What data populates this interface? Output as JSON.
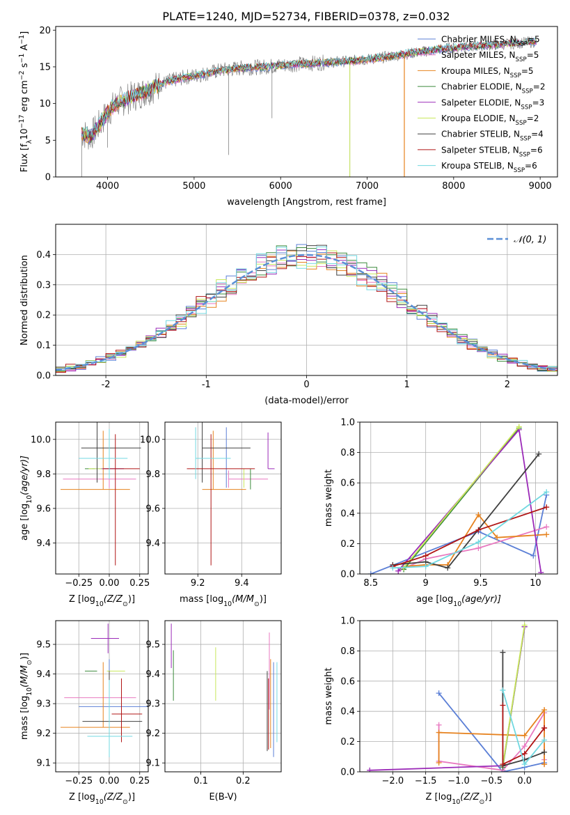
{
  "figure_title": "PLATE=1240, MJD=52734, FIBERID=0378, z=0.032",
  "colors": {
    "chabrier_miles": "#5b7fd6",
    "salpeter_miles": "#e879c0",
    "kroupa_miles": "#e6821e",
    "chabrier_elodie": "#3b8a3b",
    "salpeter_elodie": "#9b2ab8",
    "kroupa_elodie": "#c8e85a",
    "chabrier_stelib": "#404040",
    "salpeter_stelib": "#b01414",
    "kroupa_stelib": "#70d8e0",
    "data": "#808080",
    "normal_curve": "#5b8fd6",
    "grid": "#b0b0b0"
  },
  "legend_models": [
    {
      "key": "chabrier_miles",
      "label": "Chabrier MILES, N",
      "sub": "SSP",
      "value": "=5"
    },
    {
      "key": "salpeter_miles",
      "label": "Salpeter MILES, N",
      "sub": "SSP",
      "value": "=5"
    },
    {
      "key": "kroupa_miles",
      "label": "Kroupa MILES, N",
      "sub": "SSP",
      "value": "=5"
    },
    {
      "key": "chabrier_elodie",
      "label": "Chabrier ELODIE, N",
      "sub": "SSP",
      "value": "=2"
    },
    {
      "key": "salpeter_elodie",
      "label": "Salpeter ELODIE, N",
      "sub": "SSP",
      "value": "=3"
    },
    {
      "key": "kroupa_elodie",
      "label": "Kroupa ELODIE, N",
      "sub": "SSP",
      "value": "=2"
    },
    {
      "key": "chabrier_stelib",
      "label": "Chabrier STELIB, N",
      "sub": "SSP",
      "value": "=4"
    },
    {
      "key": "salpeter_stelib",
      "label": "Salpeter STELIB, N",
      "sub": "SSP",
      "value": "=6"
    },
    {
      "key": "kroupa_stelib",
      "label": "Kroupa STELIB, N",
      "sub": "SSP",
      "value": "=6"
    }
  ],
  "chart_data": [
    {
      "id": "spectrum",
      "type": "line",
      "xlabel": "wavelength [Angstrom, rest frame]",
      "ylabel_parts": [
        "Flux [f",
        "λ",
        "10",
        "−17",
        " erg cm",
        "−2",
        " s",
        "−1",
        " A",
        "−1",
        "]"
      ],
      "xlim": [
        3400,
        9200
      ],
      "ylim": [
        0,
        20.5
      ],
      "xticks": [
        4000,
        5000,
        6000,
        7000,
        8000,
        9000
      ],
      "yticks": [
        0,
        5,
        10,
        15,
        20
      ],
      "grid": false,
      "legend": "upper right",
      "continuum": {
        "x": [
          3700,
          3800,
          3900,
          4000,
          4100,
          4300,
          4500,
          4700,
          4900,
          5100,
          5300,
          5500,
          5800,
          6100,
          6400,
          6700,
          7000,
          7300,
          7600,
          7900,
          8200,
          8500,
          8800,
          9100
        ],
        "y": [
          6.0,
          5.5,
          7.0,
          8.8,
          10.0,
          11.0,
          12.0,
          13.0,
          13.6,
          14.0,
          14.5,
          14.8,
          15.0,
          15.3,
          15.5,
          15.7,
          16.0,
          16.5,
          17.0,
          17.5,
          17.8,
          18.0,
          18.3,
          18.6
        ]
      },
      "data_dips": [
        {
          "x": 3700,
          "y": 0.0
        },
        {
          "x": 4000,
          "y": 4.0
        },
        {
          "x": 5400,
          "y": 3.0
        },
        {
          "x": 5900,
          "y": 8.0
        },
        {
          "x": 6800,
          "y": 0.0
        },
        {
          "x": 7430,
          "y": 0.0
        }
      ]
    },
    {
      "id": "residual_histogram",
      "type": "histogram",
      "xlabel": "(data-model)/error",
      "ylabel": "Normed distribution",
      "xlim": [
        -2.5,
        2.5
      ],
      "ylim": [
        0,
        0.5
      ],
      "xticks": [
        -2,
        -1,
        0,
        1,
        2
      ],
      "yticks": [
        0.0,
        0.1,
        0.2,
        0.3,
        0.4
      ],
      "grid": true,
      "bin_width": 0.1,
      "legend": "upper right",
      "legend_label": "𝒩(0, 1)",
      "normal_curve": {
        "mean": 0,
        "sigma": 1
      }
    },
    {
      "id": "age_vs_Z",
      "type": "scatter",
      "xlabel_parts": [
        "Z [log",
        "10",
        "(Z/Z",
        "⊙",
        ")]"
      ],
      "ylabel_parts": [
        "age  [log",
        "10",
        "(age/yr)]"
      ],
      "xlim": [
        -0.44,
        0.32
      ],
      "ylim": [
        9.22,
        10.1
      ],
      "xticks": [
        -0.25,
        0.0,
        0.25
      ],
      "xtick_labels": [
        "−0.25",
        "0.00",
        "0.25"
      ],
      "yticks": [
        9.4,
        9.6,
        9.8,
        10.0
      ],
      "grid": true,
      "points": [
        {
          "key": "chabrier_miles",
          "x": 0.0,
          "xerr": [
            0.14,
            0.12
          ],
          "y": 9.83,
          "yerr": [
            0.11,
            0.22
          ]
        },
        {
          "key": "salpeter_miles",
          "x": 0.0,
          "xerr": [
            0.38,
            0.22
          ],
          "y": 9.77,
          "yerr": [
            0.05,
            0.05
          ]
        },
        {
          "key": "kroupa_miles",
          "x": -0.05,
          "xerr": [
            0.35,
            0.22
          ],
          "y": 9.71,
          "yerr": [
            0.0,
            0.34
          ]
        },
        {
          "key": "chabrier_elodie",
          "x": -0.17,
          "xerr": [
            0.03,
            0.05
          ],
          "y": 9.83,
          "yerr": [
            0.0,
            0.0
          ]
        },
        {
          "key": "salpeter_elodie",
          "x": -0.07,
          "xerr": [
            0.0,
            0.19
          ],
          "y": 9.83,
          "yerr": [
            0.0,
            0.0
          ]
        },
        {
          "key": "kroupa_elodie",
          "x": -0.15,
          "xerr": [
            0.02,
            0.09
          ],
          "y": 9.83,
          "yerr": [
            0.0,
            0.0
          ]
        },
        {
          "key": "chabrier_stelib",
          "x": -0.1,
          "xerr": [
            0.13,
            0.36
          ],
          "y": 9.95,
          "yerr": [
            0.2,
            0.15
          ]
        },
        {
          "key": "salpeter_stelib",
          "x": 0.05,
          "xerr": [
            0.1,
            0.2
          ],
          "y": 9.83,
          "yerr": [
            0.56,
            0.2
          ]
        },
        {
          "key": "kroupa_stelib",
          "x": 0.0,
          "xerr": [
            0.25,
            0.15
          ],
          "y": 9.89,
          "yerr": [
            0.12,
            0.17
          ]
        }
      ]
    },
    {
      "id": "age_vs_mass",
      "type": "scatter",
      "xlabel_parts": [
        "mass [log",
        "10",
        "(M/M",
        "⊙",
        ")]"
      ],
      "xlim": [
        9.05,
        9.58
      ],
      "ylim": [
        9.22,
        10.1
      ],
      "xticks": [
        9.2,
        9.4
      ],
      "yticks": [
        9.4,
        9.6,
        9.8,
        10.0
      ],
      "grid": true,
      "points": [
        {
          "key": "chabrier_miles",
          "x": 9.33,
          "xerr": [
            0.0,
            0.0
          ],
          "y": 9.83,
          "yerr": [
            0.11,
            0.24
          ]
        },
        {
          "key": "salpeter_miles",
          "x": 9.34,
          "xerr": [
            0.0,
            0.18
          ],
          "y": 9.77,
          "yerr": [
            0.05,
            0.05
          ]
        },
        {
          "key": "kroupa_miles",
          "x": 9.27,
          "xerr": [
            0.05,
            0.15
          ],
          "y": 9.71,
          "yerr": [
            0.0,
            0.34
          ]
        },
        {
          "key": "chabrier_elodie",
          "x": 9.44,
          "xerr": [
            0.0,
            0.0
          ],
          "y": 9.83,
          "yerr": [
            0.12,
            0.0
          ]
        },
        {
          "key": "salpeter_elodie",
          "x": 9.52,
          "xerr": [
            0.0,
            0.03
          ],
          "y": 9.83,
          "yerr": [
            0.0,
            0.21
          ]
        },
        {
          "key": "kroupa_elodie",
          "x": 9.41,
          "xerr": [
            0.0,
            0.0
          ],
          "y": 9.83,
          "yerr": [
            0.11,
            0.0
          ]
        },
        {
          "key": "chabrier_stelib",
          "x": 9.22,
          "xerr": [
            0.0,
            0.22
          ],
          "y": 9.95,
          "yerr": [
            0.2,
            0.15
          ]
        },
        {
          "key": "salpeter_stelib",
          "x": 9.26,
          "xerr": [
            0.11,
            0.2
          ],
          "y": 9.83,
          "yerr": [
            0.56,
            0.2
          ]
        },
        {
          "key": "kroupa_stelib",
          "x": 9.19,
          "xerr": [
            0.0,
            0.16
          ],
          "y": 9.89,
          "yerr": [
            0.12,
            0.18
          ]
        }
      ]
    },
    {
      "id": "massweight_vs_age",
      "type": "line",
      "xlabel_parts": [
        "age  [log",
        "10",
        "(age/yr)]"
      ],
      "ylabel": "mass weight",
      "xlim": [
        8.4,
        10.2
      ],
      "ylim": [
        0,
        1.0
      ],
      "xticks": [
        8.5,
        9.0,
        9.5,
        10.0
      ],
      "yticks": [
        0.0,
        0.2,
        0.4,
        0.6,
        0.8,
        1.0
      ],
      "grid": true,
      "series": [
        {
          "key": "chabrier_miles",
          "x": [
            8.5,
            9.48,
            9.98,
            10.1
          ],
          "y": [
            0.0,
            0.28,
            0.12,
            0.52
          ]
        },
        {
          "key": "salpeter_miles",
          "x": [
            8.75,
            9.0,
            9.48,
            10.1
          ],
          "y": [
            0.02,
            0.1,
            0.17,
            0.31
          ]
        },
        {
          "key": "kroupa_miles",
          "x": [
            8.8,
            9.0,
            9.2,
            9.48,
            9.65,
            10.1
          ],
          "y": [
            0.05,
            0.06,
            0.06,
            0.39,
            0.24,
            0.26
          ]
        },
        {
          "key": "chabrier_elodie",
          "x": [
            8.8,
            9.85
          ],
          "y": [
            0.03,
            0.96
          ]
        },
        {
          "key": "salpeter_elodie",
          "x": [
            8.75,
            9.85,
            10.05
          ],
          "y": [
            0.02,
            0.95,
            0.01
          ]
        },
        {
          "key": "kroupa_elodie",
          "x": [
            8.8,
            9.85
          ],
          "y": [
            0.04,
            0.97
          ]
        },
        {
          "key": "chabrier_stelib",
          "x": [
            8.7,
            9.0,
            9.2,
            10.03
          ],
          "y": [
            0.06,
            0.08,
            0.04,
            0.79
          ]
        },
        {
          "key": "salpeter_stelib",
          "x": [
            8.7,
            9.0,
            9.48,
            10.1
          ],
          "y": [
            0.05,
            0.12,
            0.29,
            0.44
          ]
        },
        {
          "key": "kroupa_stelib",
          "x": [
            8.7,
            9.0,
            9.48,
            10.1
          ],
          "y": [
            0.04,
            0.05,
            0.21,
            0.54
          ]
        }
      ]
    },
    {
      "id": "mass_vs_Z",
      "type": "scatter",
      "xlabel_parts": [
        "Z [log",
        "10",
        "(Z/Z",
        "⊙",
        ")]"
      ],
      "ylabel_parts": [
        "mass [log",
        "10",
        "(M/M",
        "⊙",
        ")]"
      ],
      "xlim": [
        -0.44,
        0.32
      ],
      "ylim": [
        9.07,
        9.58
      ],
      "xticks": [
        -0.25,
        0.0,
        0.25
      ],
      "xtick_labels": [
        "−0.25",
        "0.00",
        "0.25"
      ],
      "yticks": [
        9.1,
        9.2,
        9.3,
        9.4,
        9.5
      ],
      "grid": true,
      "points": [
        {
          "key": "chabrier_miles",
          "x": 0.0,
          "xerr": [
            0.25,
            0.32
          ],
          "y": 9.29,
          "yerr": [
            0.17,
            0.16
          ]
        },
        {
          "key": "salpeter_miles",
          "x": 0.0,
          "xerr": [
            0.37,
            0.22
          ],
          "y": 9.32,
          "yerr": [
            0.0,
            0.0
          ]
        },
        {
          "key": "kroupa_miles",
          "x": -0.05,
          "xerr": [
            0.35,
            0.22
          ],
          "y": 9.22,
          "yerr": [
            0.0,
            0.22
          ]
        },
        {
          "key": "chabrier_elodie",
          "x": -0.1,
          "xerr": [
            0.1,
            0.0
          ],
          "y": 9.41,
          "yerr": [
            0.0,
            0.0
          ]
        },
        {
          "key": "salpeter_elodie",
          "x": -0.01,
          "xerr": [
            0.14,
            0.09
          ],
          "y": 9.52,
          "yerr": [
            0.05,
            0.05
          ]
        },
        {
          "key": "kroupa_elodie",
          "x": 0.0,
          "xerr": [
            0.02,
            0.13
          ],
          "y": 9.41,
          "yerr": [
            0.0,
            0.0
          ]
        },
        {
          "key": "chabrier_stelib",
          "x": 0.0,
          "xerr": [
            0.22,
            0.27
          ],
          "y": 9.24,
          "yerr": [
            0.1,
            0.17
          ]
        },
        {
          "key": "salpeter_stelib",
          "x": 0.1,
          "xerr": [
            0.08,
            0.17
          ],
          "y": 9.265,
          "yerr": [
            0.095,
            0.12
          ]
        },
        {
          "key": "kroupa_stelib",
          "x": 0.0,
          "xerr": [
            0.18,
            0.19
          ],
          "y": 9.19,
          "yerr": [
            0.07,
            0.19
          ]
        }
      ]
    },
    {
      "id": "mass_vs_ebv",
      "type": "scatter",
      "xlabel": "E(B-V)",
      "xlim": [
        0.015,
        0.29
      ],
      "ylim": [
        9.07,
        9.58
      ],
      "xticks": [
        0.1,
        0.2
      ],
      "xtick_labels": [
        "0.1",
        "0.2"
      ],
      "yticks": [
        9.1,
        9.2,
        9.3,
        9.4,
        9.5
      ],
      "grid": true,
      "points": [
        {
          "key": "chabrier_miles",
          "x": 0.272,
          "y": 9.29,
          "yerr": [
            0.17,
            0.15
          ]
        },
        {
          "key": "salpeter_miles",
          "x": 0.262,
          "y": 9.32,
          "yerr": [
            0.04,
            0.22
          ]
        },
        {
          "key": "kroupa_miles",
          "x": 0.265,
          "y": 9.22,
          "yerr": [
            0.07,
            0.23
          ]
        },
        {
          "key": "chabrier_elodie",
          "x": 0.035,
          "y": 9.41,
          "yerr": [
            0.1,
            0.07
          ]
        },
        {
          "key": "salpeter_elodie",
          "x": 0.03,
          "y": 9.52,
          "yerr": [
            0.1,
            0.05
          ]
        },
        {
          "key": "kroupa_elodie",
          "x": 0.135,
          "y": 9.41,
          "yerr": [
            0.1,
            0.08
          ]
        },
        {
          "key": "chabrier_stelib",
          "x": 0.257,
          "y": 9.24,
          "yerr": [
            0.1,
            0.17
          ]
        },
        {
          "key": "salpeter_stelib",
          "x": 0.26,
          "y": 9.265,
          "yerr": [
            0.12,
            0.12
          ]
        },
        {
          "key": "kroupa_stelib",
          "x": 0.28,
          "y": 9.19,
          "yerr": [
            0.02,
            0.25
          ]
        }
      ]
    },
    {
      "id": "massweight_vs_Z",
      "type": "line",
      "xlabel_parts": [
        "Z [log",
        "10",
        "(Z/Z",
        "⊙",
        ")]"
      ],
      "ylabel": "mass weight",
      "xlim": [
        -2.5,
        0.5
      ],
      "ylim": [
        0,
        1.0
      ],
      "xticks": [
        -2.0,
        -1.5,
        -1.0,
        -0.5,
        0.0
      ],
      "xtick_labels": [
        "−2.0",
        "−1.5",
        "−1.0",
        "−0.5",
        "0.0"
      ],
      "yticks": [
        0.0,
        0.2,
        0.4,
        0.6,
        0.8,
        1.0
      ],
      "grid": true,
      "series": [
        {
          "key": "chabrier_miles",
          "x": [
            -1.3,
            -0.33,
            0.0,
            0.3
          ],
          "y": [
            0.52,
            0.0,
            0.03,
            0.06
          ]
        },
        {
          "key": "salpeter_miles",
          "x": [
            -1.3,
            -1.3,
            -0.33,
            0.0,
            0.3,
            0.3
          ],
          "y": [
            0.31,
            0.07,
            0.01,
            0.17,
            0.39,
            0.08
          ]
        },
        {
          "key": "kroupa_miles",
          "x": [
            -1.3,
            -1.3,
            0.0,
            0.3,
            0.3,
            0.3
          ],
          "y": [
            0.06,
            0.26,
            0.24,
            0.41,
            0.05,
            0.05
          ]
        },
        {
          "key": "chabrier_elodie",
          "x": [
            -0.33,
            0.0
          ],
          "y": [
            0.03,
            0.96
          ]
        },
        {
          "key": "salpeter_elodie",
          "x": [
            -2.35,
            -0.33,
            0.0
          ],
          "y": [
            0.01,
            0.04,
            0.96
          ]
        },
        {
          "key": "kroupa_elodie",
          "x": [
            -0.33,
            0.0
          ],
          "y": [
            0.04,
            0.97
          ]
        },
        {
          "key": "chabrier_stelib",
          "x": [
            -0.33,
            -0.33,
            0.0,
            0.3
          ],
          "y": [
            0.79,
            0.04,
            0.08,
            0.13
          ]
        },
        {
          "key": "salpeter_stelib",
          "x": [
            -0.33,
            -0.33,
            0.0,
            0.3,
            0.3
          ],
          "y": [
            0.44,
            0.05,
            0.12,
            0.29,
            0.29
          ]
        },
        {
          "key": "kroupa_stelib",
          "x": [
            -0.33,
            0.0,
            0.3
          ],
          "y": [
            0.54,
            0.05,
            0.21
          ]
        }
      ]
    }
  ]
}
